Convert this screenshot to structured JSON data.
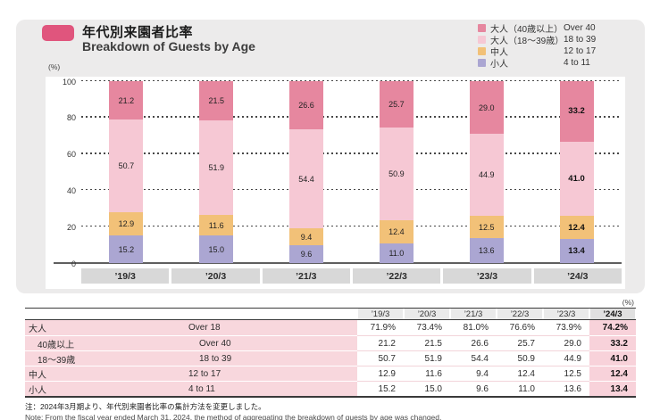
{
  "header": {
    "title_jp": "年代別来園者比率",
    "title_en": "Breakdown of Guests by Age"
  },
  "legend": [
    {
      "jp": "大人（40歳以上）",
      "en": "Over 40",
      "color": "#e6879f"
    },
    {
      "jp": "大人（18～39歳）",
      "en": "18 to 39",
      "color": "#f6c8d4"
    },
    {
      "jp": "中人",
      "en": "12 to 17",
      "color": "#f2c178"
    },
    {
      "jp": "小人",
      "en": "4 to 11",
      "color": "#aba6d2"
    }
  ],
  "chart_data": {
    "type": "bar",
    "stacked": true,
    "unit_label": "(%)",
    "categories": [
      "’19/3",
      "’20/3",
      "’21/3",
      "’22/3",
      "’23/3",
      "’24/3"
    ],
    "series": [
      {
        "name": "小人 4 to 11",
        "color": "#aba6d2",
        "values": [
          15.2,
          15.0,
          9.6,
          11.0,
          13.6,
          13.4
        ]
      },
      {
        "name": "中人 12 to 17",
        "color": "#f2c178",
        "values": [
          12.9,
          11.6,
          9.4,
          12.4,
          12.5,
          12.4
        ]
      },
      {
        "name": "大人（18～39歳） 18 to 39",
        "color": "#f6c8d4",
        "values": [
          50.7,
          51.9,
          54.4,
          50.9,
          44.9,
          41.0
        ]
      },
      {
        "name": "大人（40歳以上） Over 40",
        "color": "#e6879f",
        "values": [
          21.2,
          21.5,
          26.6,
          25.7,
          29.0,
          33.2
        ]
      }
    ],
    "ylim": [
      0,
      100
    ],
    "yticks": [
      0,
      20,
      40,
      60,
      80,
      100
    ],
    "grid": "dotted-horizontal",
    "legend_position": "top-right",
    "highlight_category": "’24/3"
  },
  "table": {
    "unit_label": "(%)",
    "columns": [
      "’19/3",
      "’20/3",
      "’21/3",
      "’22/3",
      "’23/3",
      "’24/3"
    ],
    "highlight_column": "’24/3",
    "rows": [
      {
        "jp": "大人",
        "en": "Over 18",
        "indent": false,
        "values": [
          "71.9%",
          "73.4%",
          "81.0%",
          "76.6%",
          "73.9%",
          "74.2%"
        ]
      },
      {
        "jp": "40歳以上",
        "en": "Over 40",
        "indent": true,
        "values": [
          "21.2",
          "21.5",
          "26.6",
          "25.7",
          "29.0",
          "33.2"
        ]
      },
      {
        "jp": "18～39歳",
        "en": "18 to 39",
        "indent": true,
        "values": [
          "50.7",
          "51.9",
          "54.4",
          "50.9",
          "44.9",
          "41.0"
        ]
      },
      {
        "jp": "中人",
        "en": "12 to 17",
        "indent": false,
        "values": [
          "12.9",
          "11.6",
          "9.4",
          "12.4",
          "12.5",
          "12.4"
        ]
      },
      {
        "jp": "小人",
        "en": "4 to 11",
        "indent": false,
        "values": [
          "15.2",
          "15.0",
          "9.6",
          "11.0",
          "13.6",
          "13.4"
        ]
      }
    ]
  },
  "footnote": {
    "jp": "注：2024年3月期より、年代別来園者比率の集計方法を変更しました。",
    "en": "Note: From the fiscal year ended March 31, 2024, the method of aggregating the breakdown of guests by age was changed."
  },
  "colors": {
    "title_marker_pink": "#e0557d",
    "card_background": "#ecebeb",
    "xlabel_box_gray": "#d8d8d8",
    "table_label_pink": "#f8d7dd",
    "table_highlight_pink": "#f8d2da",
    "table_header_gray": "#eaeaea"
  }
}
